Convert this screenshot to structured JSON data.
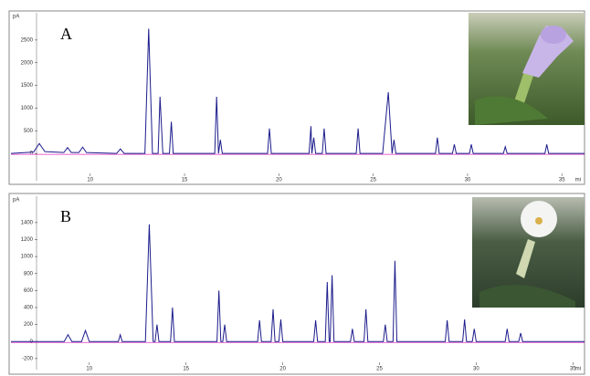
{
  "chart_data": [
    {
      "type": "line",
      "panel_label": "A",
      "ylabel": "pA",
      "xlabel": "mi",
      "color": "#1c1c8c",
      "x": [
        5.8,
        7.0,
        7.3,
        7.6,
        8.6,
        8.8,
        9.0,
        9.4,
        9.6,
        9.8,
        11.4,
        11.6,
        11.8,
        12.9,
        13.1,
        13.3,
        13.6,
        13.7,
        13.85,
        14.2,
        14.3,
        14.4,
        16.6,
        16.7,
        16.8,
        16.9,
        17.0,
        19.4,
        19.5,
        19.6,
        21.6,
        21.7,
        21.75,
        21.85,
        21.95,
        22.3,
        22.4,
        22.5,
        24.1,
        24.2,
        24.3,
        25.5,
        25.8,
        26.0,
        26.1,
        26.2,
        28.3,
        28.4,
        28.5,
        29.2,
        29.3,
        29.4,
        30.1,
        30.2,
        30.3,
        31.9,
        32.0,
        32.1,
        34.1,
        34.2,
        34.3,
        36.2
      ],
      "values": [
        0,
        30,
        220,
        40,
        20,
        130,
        20,
        20,
        140,
        20,
        0,
        100,
        0,
        0,
        2750,
        0,
        0,
        1250,
        0,
        0,
        700,
        0,
        0,
        1250,
        0,
        300,
        0,
        0,
        550,
        0,
        0,
        600,
        0,
        350,
        0,
        0,
        550,
        0,
        0,
        550,
        0,
        0,
        1350,
        0,
        300,
        0,
        0,
        350,
        0,
        0,
        200,
        0,
        0,
        200,
        0,
        0,
        150,
        0,
        0,
        200,
        0,
        0
      ],
      "xlim": [
        5.8,
        36.2
      ],
      "ylim": [
        -600,
        3100
      ],
      "xticks": [
        10,
        15,
        20,
        25,
        30,
        35
      ],
      "yticks": [
        0,
        500,
        1000,
        1500,
        2000,
        2500
      ]
    },
    {
      "type": "line",
      "panel_label": "B",
      "ylabel": "pA",
      "xlabel": "mi",
      "color": "#1c1c8c",
      "x": [
        5.95,
        8.7,
        8.9,
        9.1,
        9.6,
        9.8,
        10.0,
        11.5,
        11.6,
        11.7,
        12.9,
        13.1,
        13.3,
        13.4,
        13.5,
        13.6,
        14.2,
        14.3,
        14.4,
        16.6,
        16.7,
        16.8,
        16.9,
        17.0,
        17.1,
        18.7,
        18.8,
        18.9,
        19.4,
        19.5,
        19.6,
        19.8,
        19.9,
        20.0,
        21.6,
        21.7,
        21.8,
        22.2,
        22.3,
        22.4,
        22.45,
        22.55,
        22.65,
        23.5,
        23.6,
        23.7,
        24.2,
        24.3,
        24.4,
        25.2,
        25.3,
        25.4,
        25.7,
        25.8,
        25.9,
        28.4,
        28.5,
        28.6,
        29.3,
        29.4,
        29.5,
        29.8,
        29.9,
        30.0,
        31.5,
        31.6,
        31.7,
        32.2,
        32.3,
        32.4,
        35.6
      ],
      "values": [
        0,
        0,
        80,
        0,
        0,
        130,
        0,
        0,
        80,
        0,
        0,
        1380,
        0,
        0,
        200,
        0,
        0,
        400,
        0,
        0,
        600,
        0,
        0,
        200,
        0,
        0,
        250,
        0,
        0,
        380,
        0,
        0,
        260,
        0,
        0,
        250,
        0,
        0,
        700,
        0,
        0,
        780,
        0,
        0,
        150,
        0,
        0,
        380,
        0,
        0,
        200,
        0,
        0,
        950,
        0,
        0,
        250,
        0,
        0,
        260,
        0,
        0,
        150,
        0,
        0,
        150,
        0,
        0,
        100,
        0,
        0
      ],
      "xlim": [
        5.95,
        35.6
      ],
      "ylim": [
        -330,
        1710
      ],
      "xticks": [
        10,
        15,
        20,
        25,
        30,
        35
      ],
      "yticks": [
        -200,
        0,
        200,
        400,
        600,
        800,
        1000,
        1200,
        1400
      ]
    }
  ]
}
